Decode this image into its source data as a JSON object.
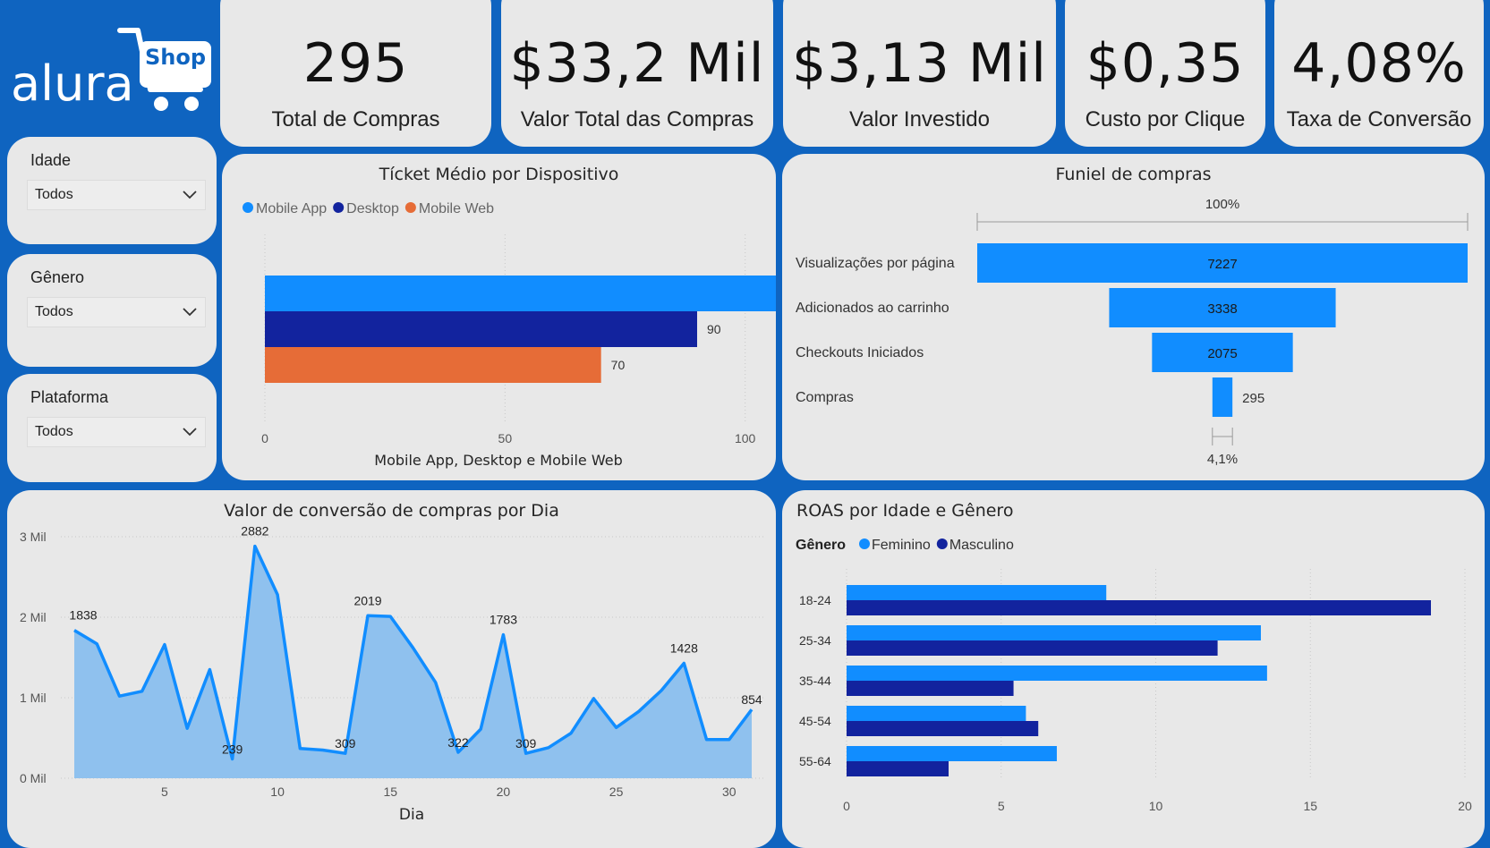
{
  "brand": {
    "name": "alura",
    "badge": "Shop"
  },
  "kpis": [
    {
      "value": "295",
      "label": "Total de Compras"
    },
    {
      "value": "$33,2 Mil",
      "label": "Valor Total das Compras"
    },
    {
      "value": "$3,13 Mil",
      "label": "Valor Investido"
    },
    {
      "value": "$0,35",
      "label": "Custo por Clique"
    },
    {
      "value": "4,08%",
      "label": "Taxa de Conversão"
    }
  ],
  "filters": [
    {
      "label": "Idade",
      "value": "Todos"
    },
    {
      "label": "Gênero",
      "value": "Todos"
    },
    {
      "label": "Plataforma",
      "value": "Todos"
    }
  ],
  "colors": {
    "light_blue": "#118dff",
    "dark_blue": "#12239e",
    "orange": "#e66c37",
    "area": "#8fc1ee",
    "background": "#0f64c0",
    "card": "#e8e8e8"
  },
  "chart_data": [
    {
      "type": "bar",
      "orientation": "horizontal",
      "title": "Tícket Médio por Dispositivo",
      "xlabel": "Mobile App, Desktop e Mobile Web",
      "xlim": [
        0,
        120
      ],
      "x_ticks": [
        0,
        50,
        100
      ],
      "legend_position": "top-left",
      "series": [
        {
          "name": "Mobile App",
          "values": [
            113
          ]
        },
        {
          "name": "Desktop",
          "values": [
            90
          ]
        },
        {
          "name": "Mobile Web",
          "values": [
            70
          ]
        }
      ]
    },
    {
      "type": "bar",
      "subtype": "funnel",
      "title": "Funiel de compras",
      "top_label": "100%",
      "bottom_label": "4,1%",
      "categories": [
        "Visualizações por página",
        "Adicionados ao carrinho",
        "Checkouts Iniciados",
        "Compras"
      ],
      "values": [
        7227,
        3338,
        2075,
        295
      ]
    },
    {
      "type": "area",
      "title": "Valor de conversão de compras por Dia",
      "xlabel": "Dia",
      "x": [
        1,
        2,
        3,
        4,
        5,
        6,
        7,
        8,
        9,
        10,
        11,
        12,
        13,
        14,
        15,
        16,
        17,
        18,
        19,
        20,
        21,
        22,
        23,
        24,
        25,
        26,
        27,
        28,
        29,
        30,
        31
      ],
      "values": [
        1838,
        1670,
        1020,
        1080,
        1660,
        620,
        1350,
        239,
        2882,
        2280,
        370,
        350,
        309,
        2019,
        2010,
        1620,
        1190,
        322,
        610,
        1783,
        309,
        380,
        560,
        990,
        630,
        830,
        1090,
        1428,
        480,
        480,
        854
      ],
      "data_labels": [
        {
          "x": 1,
          "text": "1838"
        },
        {
          "x": 8,
          "text": "239"
        },
        {
          "x": 9,
          "text": "2882"
        },
        {
          "x": 13,
          "text": "309"
        },
        {
          "x": 14,
          "text": "2019"
        },
        {
          "x": 18,
          "text": "322"
        },
        {
          "x": 20,
          "text": "1783"
        },
        {
          "x": 21,
          "text": "309"
        },
        {
          "x": 28,
          "text": "1428"
        },
        {
          "x": 31,
          "text": "854"
        }
      ],
      "ylim": [
        0,
        3000
      ],
      "y_ticks": [
        0,
        1000,
        2000,
        3000
      ],
      "y_tick_labels": [
        "0 Mil",
        "1 Mil",
        "2 Mil",
        "3 Mil"
      ],
      "x_ticks": [
        5,
        10,
        15,
        20,
        25,
        30
      ],
      "grid": true
    },
    {
      "type": "bar",
      "orientation": "horizontal",
      "title": "ROAS por Idade e Gênero",
      "legend_title": "Gênero",
      "legend_position": "top-left",
      "categories": [
        "18-24",
        "25-34",
        "35-44",
        "45-54",
        "55-64"
      ],
      "series": [
        {
          "name": "Feminino",
          "values": [
            8.4,
            13.4,
            13.6,
            5.8,
            6.8
          ]
        },
        {
          "name": "Masculino",
          "values": [
            18.9,
            12.0,
            5.4,
            6.2,
            3.3
          ]
        }
      ],
      "xlim": [
        0,
        20
      ],
      "x_ticks": [
        0,
        5,
        10,
        15,
        20
      ],
      "grid": true
    }
  ]
}
